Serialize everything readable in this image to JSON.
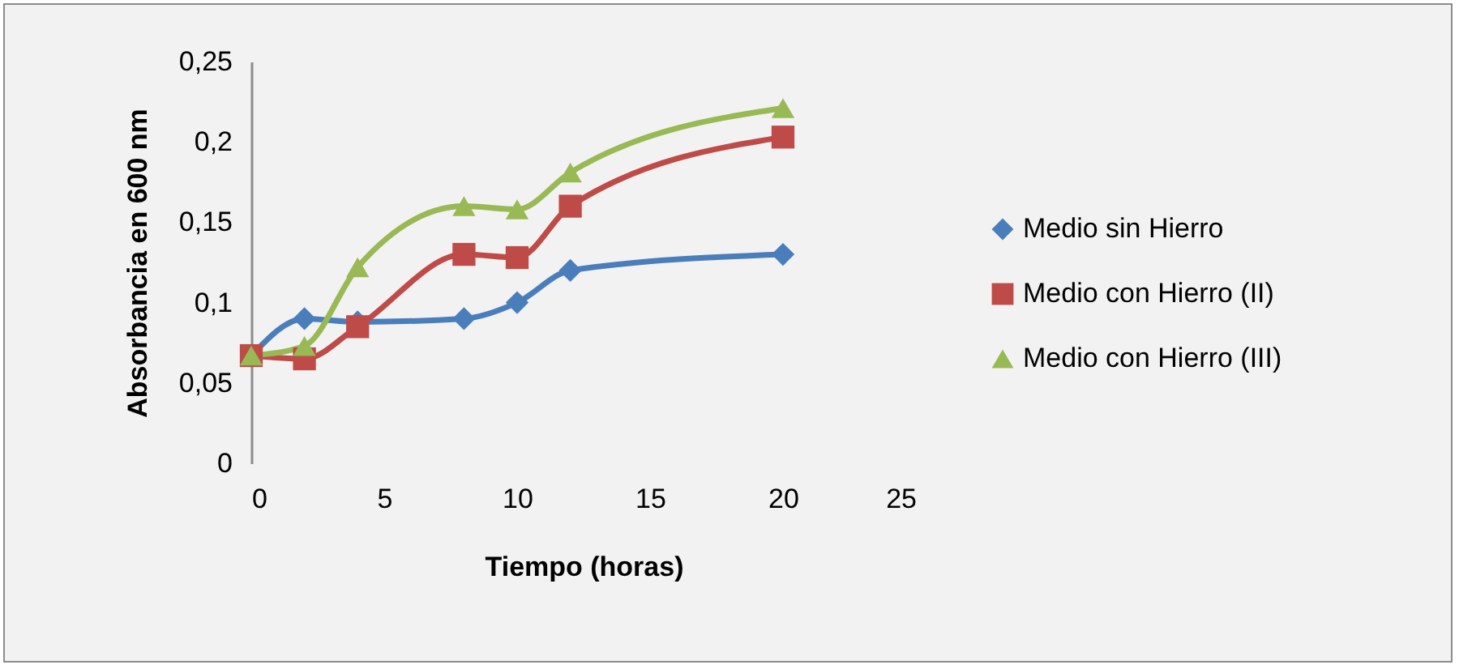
{
  "chart_data": {
    "type": "line",
    "xlabel": "Tiempo (horas)",
    "ylabel": "Absorbancia en 600 nm",
    "x": [
      0,
      2,
      4,
      8,
      10,
      12,
      20
    ],
    "series": [
      {
        "name": "Medio sin Hierro",
        "color": "#4a7ebb",
        "marker": "diamond",
        "values": [
          0.067,
          0.09,
          0.088,
          0.09,
          0.1,
          0.12,
          0.13
        ]
      },
      {
        "name": "Medio con Hierro (II)",
        "color": "#be4b48",
        "marker": "square",
        "values": [
          0.067,
          0.065,
          0.085,
          0.13,
          0.128,
          0.16,
          0.203
        ]
      },
      {
        "name": "Medio con Hierro (III)",
        "color": "#98b954",
        "marker": "triangle",
        "values": [
          0.067,
          0.073,
          0.122,
          0.16,
          0.158,
          0.181,
          0.221
        ]
      }
    ],
    "xlim": [
      0,
      25
    ],
    "xticks": [
      0,
      5,
      10,
      15,
      20,
      25
    ],
    "ylim": [
      0,
      0.25
    ],
    "yticks": [
      0,
      {
        "value": 0.05,
        "label": "0,05"
      },
      {
        "value": 0.1,
        "label": "0,1"
      },
      {
        "value": 0.15,
        "label": "0,15"
      },
      {
        "value": 0.2,
        "label": "0,2"
      },
      {
        "value": 0.25,
        "label": "0,25"
      }
    ],
    "grid": false,
    "legend": "right",
    "line_style": "solid"
  }
}
